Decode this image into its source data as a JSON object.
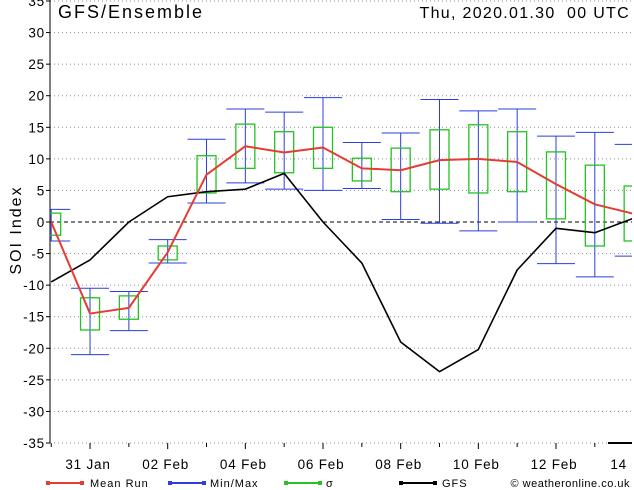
{
  "chart_data": {
    "type": "line",
    "title": "GFS/Ensemble",
    "subtitle": "Thu, 2020.01.30  00 UTC",
    "xlabel": "",
    "ylabel": "SOI Index",
    "ylim": [
      -35,
      35
    ],
    "yticks": [
      35,
      30,
      25,
      20,
      15,
      10,
      5,
      0,
      -5,
      -10,
      -15,
      -20,
      -25,
      -30,
      -35
    ],
    "x": [
      "2020-01-30",
      "2020-01-31",
      "2020-02-01",
      "2020-02-02",
      "2020-02-03",
      "2020-02-04",
      "2020-02-05",
      "2020-02-06",
      "2020-02-07",
      "2020-02-08",
      "2020-02-09",
      "2020-02-10",
      "2020-02-11",
      "2020-02-12",
      "2020-02-13",
      "2020-02-14"
    ],
    "xticks": [
      {
        "x": "2020-01-31",
        "label": "31 Jan"
      },
      {
        "x": "2020-02-02",
        "label": "02 Feb"
      },
      {
        "x": "2020-02-04",
        "label": "04 Feb"
      },
      {
        "x": "2020-02-06",
        "label": "06 Feb"
      },
      {
        "x": "2020-02-08",
        "label": "08 Feb"
      },
      {
        "x": "2020-02-10",
        "label": "10 Feb"
      },
      {
        "x": "2020-02-12",
        "label": "12 Feb"
      },
      {
        "x": "2020-02-14",
        "label": "14"
      }
    ],
    "series": [
      {
        "name": "Mean Run",
        "color": "#e43d33",
        "values": [
          0,
          -14.5,
          -13.6,
          -4.8,
          7.5,
          12,
          11,
          11.8,
          8.5,
          8.2,
          9.8,
          10,
          9.5,
          6,
          2.8,
          1.3
        ]
      },
      {
        "name": "GFS",
        "color": "#000000",
        "values": [
          -9.5,
          -6,
          0,
          4,
          4.8,
          5.2,
          7.7,
          0,
          -6.5,
          -19,
          -23.7,
          -20.2,
          -7.6,
          -1,
          -1.7,
          0.6
        ]
      }
    ],
    "min_max": {
      "name": "Min/Max",
      "color": "#2a3fdc",
      "min": [
        -3,
        -21,
        -17.2,
        -6.5,
        3,
        6.2,
        5.2,
        5,
        5.3,
        0.4,
        -0.2,
        -1.4,
        0,
        -6.6,
        -8.7,
        -5.4
      ],
      "max": [
        2,
        -10.5,
        -11,
        -2.8,
        13.1,
        17.9,
        17.4,
        19.7,
        12.6,
        14.1,
        19.4,
        17.6,
        17.9,
        13.6,
        14.2,
        12.3
      ]
    },
    "sigma": {
      "name": "σ",
      "color": "#22c322",
      "low": [
        -2.1,
        -17.1,
        -15.4,
        -6,
        4.6,
        8.5,
        7.8,
        8.5,
        6.5,
        4.8,
        5.2,
        4.6,
        4.8,
        0.5,
        -3.8,
        -3
      ],
      "high": [
        1.4,
        -12,
        -11.7,
        -3.8,
        10.5,
        15.5,
        14.3,
        15,
        10.1,
        11.7,
        14.6,
        15.4,
        14.3,
        11.1,
        9,
        5.7
      ]
    },
    "grid": true,
    "legend_position": "bottom",
    "credit": "© weatheronline.co.uk"
  }
}
